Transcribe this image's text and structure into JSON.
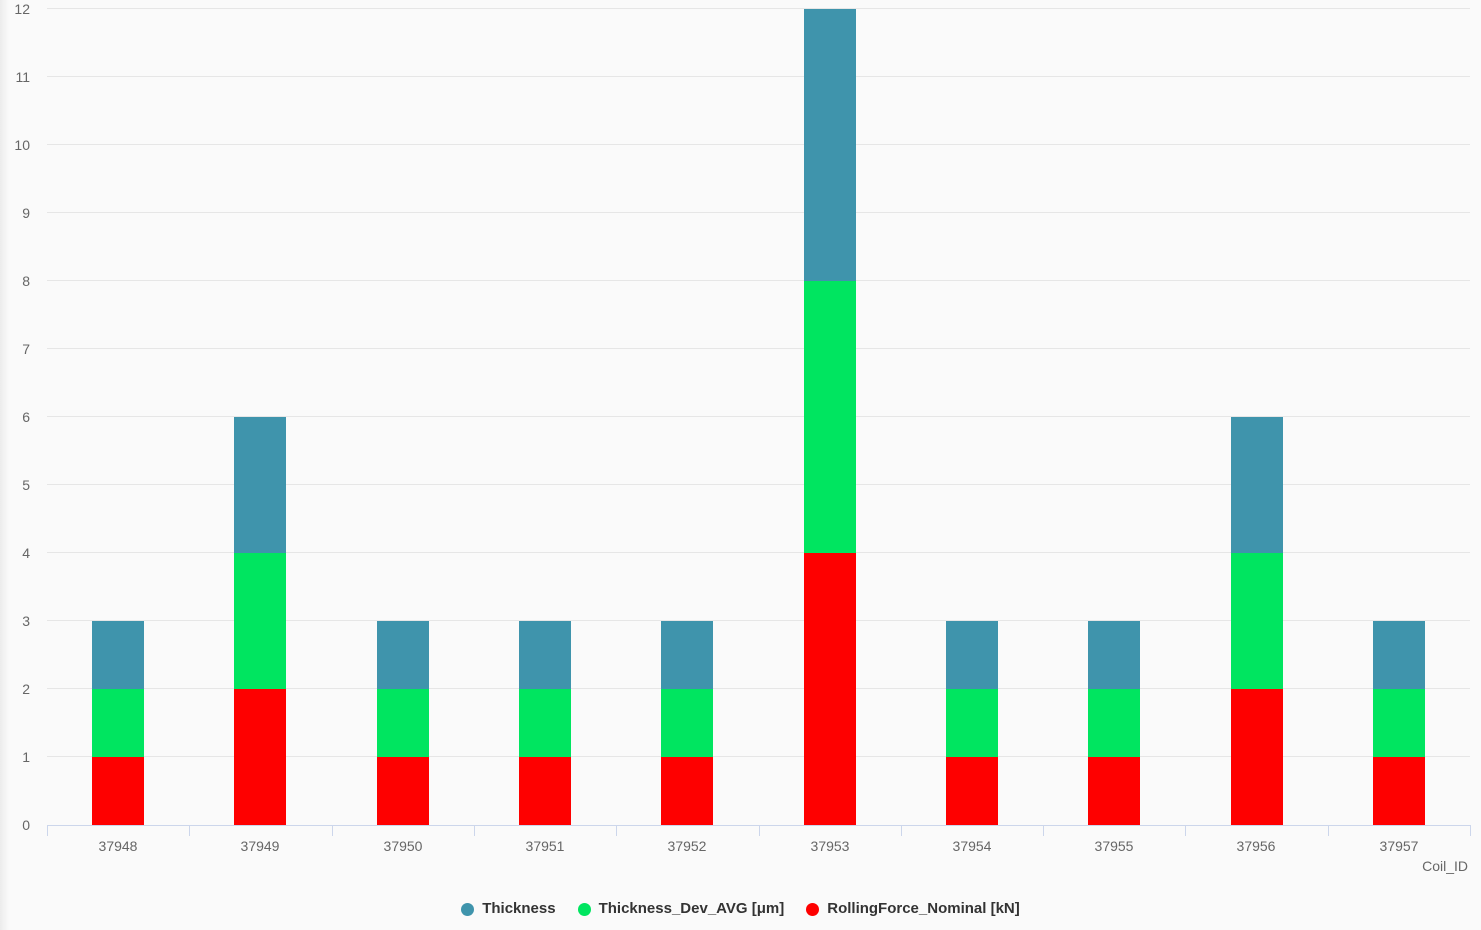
{
  "chart_data": {
    "type": "bar",
    "variant": "stacked-column",
    "title": "",
    "xlabel": "Coil_ID",
    "ylabel": "",
    "categories": [
      "37948",
      "37949",
      "37950",
      "37951",
      "37952",
      "37953",
      "37954",
      "37955",
      "37956",
      "37957"
    ],
    "series": [
      {
        "name": "Thickness",
        "color": "#3f94ac",
        "values": [
          1,
          2,
          1,
          1,
          1,
          4,
          1,
          1,
          2,
          1
        ]
      },
      {
        "name": "Thickness_Dev_AVG [μm]",
        "color": "#00e560",
        "values": [
          1,
          2,
          1,
          1,
          1,
          4,
          1,
          1,
          2,
          1
        ]
      },
      {
        "name": "RollingForce_Nominal [kN]",
        "color": "#fe0000",
        "values": [
          1,
          2,
          1,
          1,
          1,
          4,
          1,
          1,
          2,
          1
        ]
      }
    ],
    "stack_order_bottom_to_top": [
      "RollingForce_Nominal [kN]",
      "Thickness_Dev_AVG [μm]",
      "Thickness"
    ],
    "stack_totals": [
      3,
      6,
      3,
      3,
      3,
      12,
      3,
      3,
      6,
      3
    ],
    "ylim": [
      0,
      12
    ],
    "yticks": [
      "0",
      "1",
      "2",
      "3",
      "4",
      "5",
      "6",
      "7",
      "8",
      "9",
      "10",
      "11",
      "12"
    ],
    "grid": true,
    "legend_position": "bottom-center",
    "colors": {
      "background": "#fafafa",
      "gridline": "#e6e6e6",
      "axis_line": "#ccd6eb",
      "tick_label": "#666666",
      "axis_title": "#666666",
      "legend_text": "#333333"
    }
  }
}
